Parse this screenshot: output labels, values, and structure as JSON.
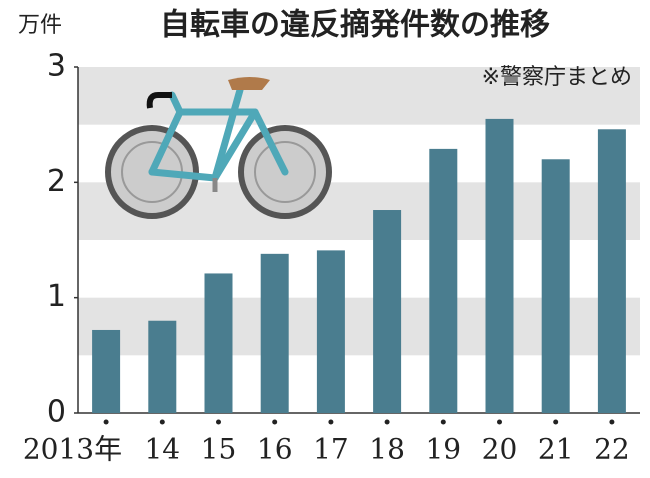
{
  "chart_data": {
    "type": "bar",
    "title": "自転車の違反摘発件数の推移",
    "unit_label": "万件",
    "note": "※警察庁まとめ",
    "categories": [
      "2013年",
      "14",
      "15",
      "16",
      "17",
      "18",
      "19",
      "20",
      "21",
      "22"
    ],
    "values": [
      0.72,
      0.8,
      1.21,
      1.38,
      1.41,
      1.76,
      2.29,
      2.55,
      2.2,
      2.46
    ],
    "color": "#4a7d8f",
    "ylim": [
      0,
      3
    ],
    "yticks": [
      0,
      1,
      2,
      3
    ],
    "grid": true
  }
}
